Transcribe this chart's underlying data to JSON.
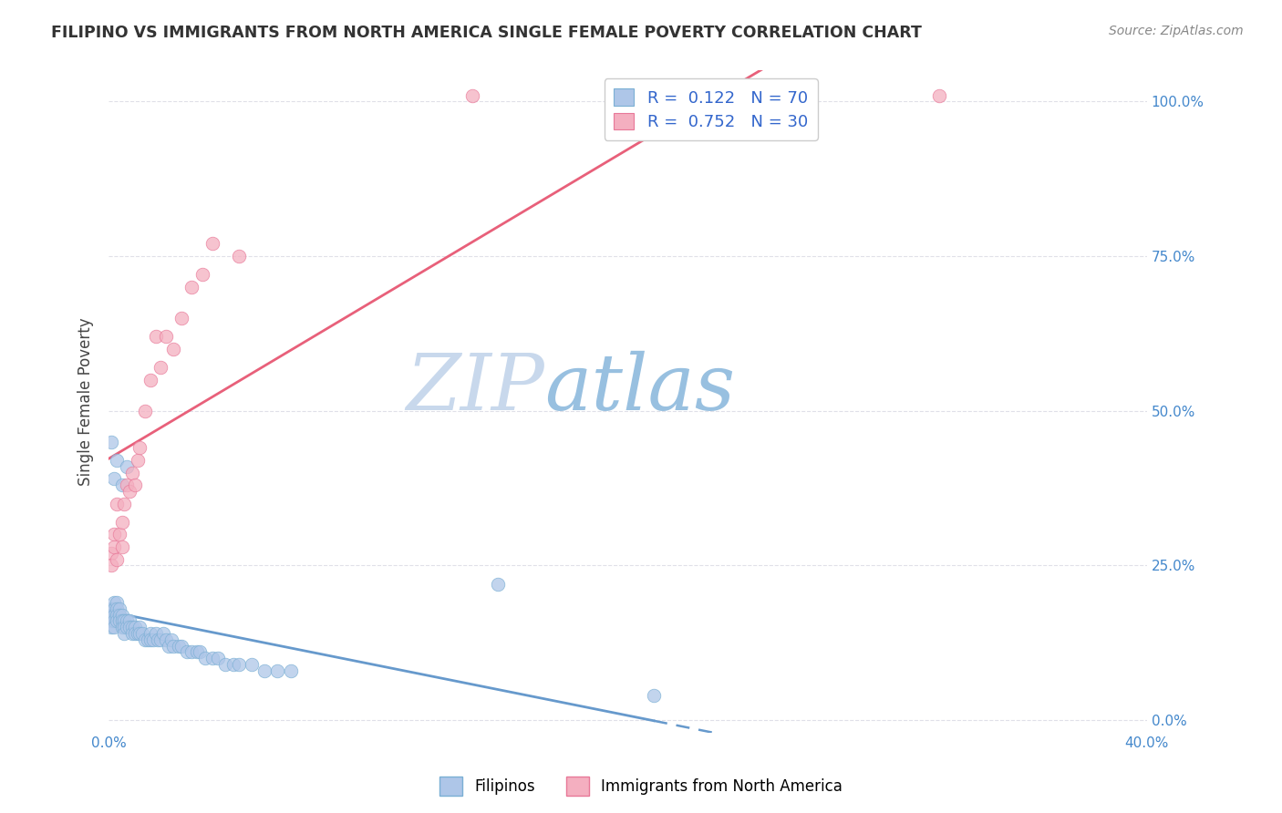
{
  "title": "FILIPINO VS IMMIGRANTS FROM NORTH AMERICA SINGLE FEMALE POVERTY CORRELATION CHART",
  "source": "Source: ZipAtlas.com",
  "ylabel_left": "Single Female Poverty",
  "x_min": 0.0,
  "x_max": 0.4,
  "y_min": -0.02,
  "y_max": 1.05,
  "filipino_R": 0.122,
  "filipino_N": 70,
  "northam_R": 0.752,
  "northam_N": 30,
  "filipino_color": "#aec6e8",
  "northam_color": "#f4afc0",
  "filipino_edge_color": "#7aafd4",
  "northam_edge_color": "#e87898",
  "filipino_line_color": "#6699cc",
  "northam_line_color": "#e8607a",
  "watermark_zip_color": "#c8d8ec",
  "watermark_atlas_color": "#98c0e0",
  "y_ticks": [
    0.0,
    0.25,
    0.5,
    0.75,
    1.0
  ],
  "y_tick_labels": [
    "0.0%",
    "25.0%",
    "50.0%",
    "75.0%",
    "100.0%"
  ],
  "grid_color": "#e0e0e8",
  "legend_r_color": "#3366cc",
  "legend_n_color": "#3366cc",
  "filipino_x": [
    0.001,
    0.001,
    0.001,
    0.001,
    0.002,
    0.002,
    0.002,
    0.002,
    0.002,
    0.003,
    0.003,
    0.003,
    0.003,
    0.004,
    0.004,
    0.004,
    0.005,
    0.005,
    0.005,
    0.006,
    0.006,
    0.006,
    0.007,
    0.007,
    0.008,
    0.008,
    0.009,
    0.009,
    0.01,
    0.01,
    0.011,
    0.012,
    0.012,
    0.013,
    0.014,
    0.015,
    0.016,
    0.016,
    0.017,
    0.018,
    0.019,
    0.02,
    0.021,
    0.022,
    0.023,
    0.024,
    0.025,
    0.027,
    0.028,
    0.03,
    0.032,
    0.034,
    0.035,
    0.037,
    0.04,
    0.042,
    0.045,
    0.048,
    0.05,
    0.055,
    0.06,
    0.065,
    0.07,
    0.001,
    0.002,
    0.003,
    0.005,
    0.007,
    0.15,
    0.21
  ],
  "filipino_y": [
    0.18,
    0.17,
    0.16,
    0.15,
    0.19,
    0.18,
    0.17,
    0.16,
    0.15,
    0.19,
    0.18,
    0.17,
    0.16,
    0.18,
    0.17,
    0.16,
    0.17,
    0.16,
    0.15,
    0.16,
    0.15,
    0.14,
    0.16,
    0.15,
    0.16,
    0.15,
    0.15,
    0.14,
    0.15,
    0.14,
    0.14,
    0.15,
    0.14,
    0.14,
    0.13,
    0.13,
    0.14,
    0.13,
    0.13,
    0.14,
    0.13,
    0.13,
    0.14,
    0.13,
    0.12,
    0.13,
    0.12,
    0.12,
    0.12,
    0.11,
    0.11,
    0.11,
    0.11,
    0.1,
    0.1,
    0.1,
    0.09,
    0.09,
    0.09,
    0.09,
    0.08,
    0.08,
    0.08,
    0.45,
    0.39,
    0.42,
    0.38,
    0.41,
    0.22,
    0.04
  ],
  "northam_x": [
    0.001,
    0.001,
    0.002,
    0.002,
    0.003,
    0.003,
    0.004,
    0.005,
    0.005,
    0.006,
    0.007,
    0.008,
    0.009,
    0.01,
    0.011,
    0.012,
    0.014,
    0.016,
    0.018,
    0.02,
    0.022,
    0.025,
    0.028,
    0.032,
    0.036,
    0.04,
    0.05,
    0.14,
    0.25,
    0.32
  ],
  "northam_y": [
    0.27,
    0.25,
    0.3,
    0.28,
    0.35,
    0.26,
    0.3,
    0.32,
    0.28,
    0.35,
    0.38,
    0.37,
    0.4,
    0.38,
    0.42,
    0.44,
    0.5,
    0.55,
    0.62,
    0.57,
    0.62,
    0.6,
    0.65,
    0.7,
    0.72,
    0.77,
    0.75,
    1.01,
    1.01,
    1.01
  ]
}
